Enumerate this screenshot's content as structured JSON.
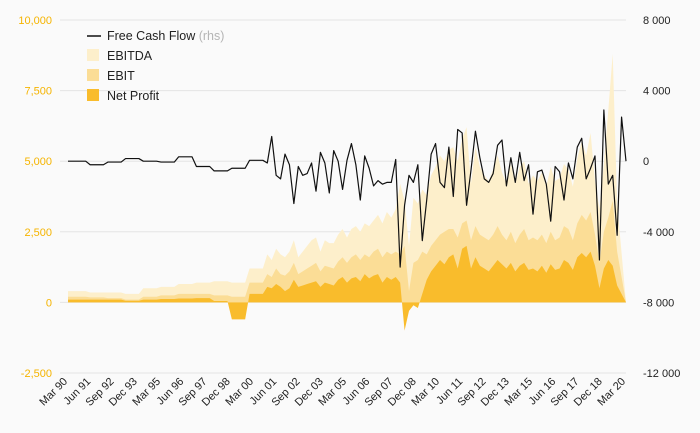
{
  "chart_data": {
    "type": "area",
    "x_start": "Mar 90",
    "x_end": "Mar 20",
    "x_tick_labels": [
      "Mar 90",
      "Jun 91",
      "Sep 92",
      "Dec 93",
      "Mar 95",
      "Jun 96",
      "Sep 97",
      "Dec 98",
      "Mar 00",
      "Jun 01",
      "Sep 02",
      "Dec 03",
      "Mar 05",
      "Jun 06",
      "Sep 07",
      "Dec 08",
      "Mar 10",
      "Jun 11",
      "Sep 12",
      "Dec 13",
      "Mar 15",
      "Jun 16",
      "Sep 17",
      "Dec 18",
      "Mar 20"
    ],
    "left_axis": {
      "ticks": [
        "-2,500",
        "0",
        "2,500",
        "5,000",
        "7,500",
        "10,000"
      ],
      "range": [
        -2500,
        10000
      ]
    },
    "right_axis": {
      "ticks": [
        "-12 000",
        "-8 000",
        "-4 000",
        "0",
        "4 000",
        "8 000"
      ],
      "range": [
        -12000,
        8000
      ]
    },
    "legend": {
      "fcf": "Free Cash Flow",
      "fcf_note": "(rhs)",
      "ebitda": "EBITDA",
      "ebit": "EBIT",
      "net_profit": "Net Profit"
    },
    "colors": {
      "ebitda": "#FDEFCB",
      "ebit": "#FBDD96",
      "net_profit": "#F9BC2C",
      "fcf": "#111111",
      "left_axis": "#F5B400"
    },
    "series": {
      "fcf": [
        0,
        0,
        0,
        0,
        0,
        -200,
        -200,
        -200,
        -200,
        -50,
        -50,
        -50,
        -50,
        150,
        150,
        150,
        150,
        0,
        0,
        0,
        0,
        -50,
        -50,
        -50,
        -50,
        250,
        250,
        250,
        250,
        -300,
        -300,
        -300,
        -300,
        -550,
        -550,
        -550,
        -550,
        -400,
        -400,
        -400,
        -400,
        50,
        50,
        50,
        50,
        -100,
        1400,
        -800,
        -1000,
        400,
        -200,
        -2400,
        -300,
        -800,
        -700,
        -100,
        -1700,
        500,
        -100,
        -1800,
        600,
        0,
        -1600,
        50,
        1000,
        -200,
        -2200,
        300,
        -400,
        -1400,
        -1100,
        -1300,
        -1200,
        -1200,
        100,
        -6000,
        -2500,
        -800,
        -1200,
        -200,
        -4500,
        -2200,
        400,
        1000,
        -1200,
        -1500,
        800,
        -2000,
        1800,
        1600,
        -2500,
        -500,
        1700,
        200,
        -1000,
        -1200,
        -700,
        900,
        1200,
        -1400,
        200,
        -1200,
        500,
        -1100,
        -200,
        -3000,
        -600,
        -500,
        -1300,
        -3400,
        -300,
        -600,
        -2200,
        -100,
        -1000,
        800,
        1300,
        -1000,
        -400,
        300,
        -5600,
        2900,
        -1300,
        -800,
        -4200,
        2500,
        0
      ],
      "ebitda": [
        400,
        400,
        400,
        400,
        400,
        350,
        350,
        350,
        350,
        350,
        350,
        350,
        350,
        300,
        300,
        300,
        300,
        500,
        500,
        500,
        500,
        550,
        550,
        550,
        550,
        650,
        650,
        650,
        650,
        700,
        700,
        700,
        700,
        750,
        750,
        750,
        750,
        700,
        700,
        700,
        700,
        1200,
        1200,
        1200,
        1200,
        1700,
        1500,
        1900,
        1700,
        1600,
        1800,
        2200,
        1600,
        1800,
        2000,
        2200,
        2300,
        1800,
        2200,
        2100,
        2100,
        2400,
        2600,
        2300,
        2600,
        2700,
        2500,
        2800,
        2700,
        2900,
        3100,
        2800,
        3200,
        3000,
        3300,
        4200,
        3600,
        2000,
        3700,
        3500,
        4000,
        3800,
        4500,
        4800,
        5200,
        5000,
        5400,
        5500,
        5000,
        5800,
        6200,
        4200,
        5500,
        4800,
        4500,
        4300,
        4700,
        5200,
        4600,
        4200,
        4900,
        4200,
        4800,
        5000,
        4200,
        4500,
        4300,
        4600,
        4100,
        4800,
        4300,
        4400,
        4900,
        4700,
        4100,
        5100,
        5700,
        5200,
        6000,
        4300,
        3300,
        4900,
        6800,
        8800,
        3500
      ],
      "ebit": [
        200,
        200,
        200,
        200,
        200,
        180,
        180,
        180,
        180,
        150,
        150,
        150,
        150,
        100,
        100,
        100,
        100,
        200,
        200,
        200,
        200,
        250,
        250,
        250,
        250,
        300,
        300,
        300,
        300,
        300,
        300,
        300,
        300,
        250,
        250,
        250,
        250,
        200,
        200,
        200,
        200,
        700,
        700,
        700,
        700,
        1000,
        900,
        1200,
        1000,
        950,
        1100,
        1400,
        1000,
        1100,
        1200,
        1300,
        1400,
        1100,
        1300,
        1250,
        1200,
        1450,
        1600,
        1400,
        1600,
        1700,
        1500,
        1700,
        1600,
        1800,
        1900,
        1600,
        1800,
        1700,
        1800,
        1700,
        2000,
        400,
        1400,
        1500,
        1800,
        1700,
        2000,
        2200,
        2400,
        2500,
        2600,
        2600,
        2300,
        2800,
        2900,
        2200,
        2700,
        2400,
        2300,
        2200,
        2400,
        2700,
        2400,
        2200,
        2500,
        2100,
        2400,
        2600,
        2200,
        2300,
        2200,
        2400,
        2100,
        2500,
        2200,
        2300,
        2700,
        2600,
        2200,
        2800,
        3100,
        2900,
        3200,
        2400,
        1400,
        2500,
        3000,
        3600,
        1800
      ],
      "net_profit": [
        100,
        100,
        100,
        100,
        100,
        100,
        100,
        100,
        100,
        100,
        100,
        100,
        100,
        60,
        60,
        60,
        60,
        100,
        100,
        100,
        100,
        120,
        120,
        120,
        120,
        140,
        140,
        140,
        140,
        150,
        150,
        150,
        150,
        50,
        50,
        50,
        50,
        -600,
        -600,
        -600,
        -600,
        300,
        300,
        300,
        300,
        550,
        500,
        650,
        550,
        400,
        500,
        800,
        550,
        600,
        650,
        700,
        750,
        550,
        700,
        650,
        600,
        800,
        900,
        700,
        850,
        900,
        750,
        1000,
        850,
        950,
        1000,
        700,
        900,
        800,
        900,
        700,
        -1000,
        -300,
        -100,
        -200,
        300,
        800,
        1100,
        1300,
        1500,
        1350,
        1600,
        1700,
        1200,
        1900,
        2000,
        1200,
        1600,
        1300,
        1200,
        1100,
        1300,
        1500,
        1350,
        1200,
        1400,
        1100,
        1300,
        1400,
        1150,
        1200,
        1100,
        1300,
        1050,
        1350,
        1150,
        1200,
        1500,
        1400,
        1150,
        1600,
        1750,
        1600,
        1800,
        1300,
        500,
        1200,
        1500,
        1300,
        600
      ]
    }
  }
}
